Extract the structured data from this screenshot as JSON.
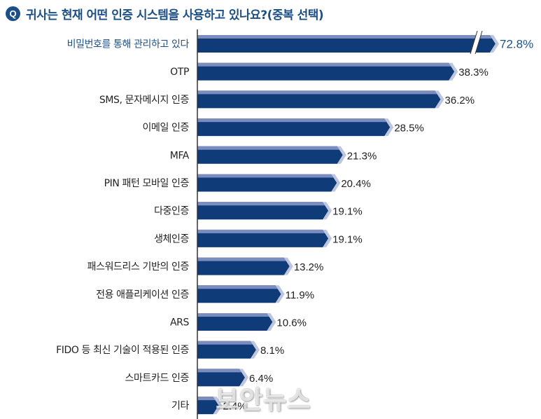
{
  "question_badge": "Q",
  "title": "귀사는 현재 어떤 인증 시스템을 사용하고 있나요?(중복 선택)",
  "watermark": "보안뉴스",
  "colors": {
    "bar_main": "#0f3b78",
    "bar_top": "#7b8cbf",
    "bar_end": "#bcc6e0",
    "highlight_text": "#1c4f86",
    "axis": "#333333"
  },
  "chart_data": {
    "type": "bar",
    "orientation": "horizontal",
    "title": "귀사는 현재 어떤 인증 시스템을 사용하고 있나요?(중복 선택)",
    "categories": [
      "비밀번호를 통해 관리하고 있다",
      "OTP",
      "SMS, 문자메시지 인증",
      "이메일 인증",
      "MFA",
      "PIN 패턴 모바일 인증",
      "다중인증",
      "생체인증",
      "패스워드리스 기반의 인증",
      "전용 애플리케이션 인증",
      "ARS",
      "FIDO 등 최신 기술이 적용된 인증",
      "스마트카드 인증",
      "기타"
    ],
    "values": [
      72.8,
      38.3,
      36.2,
      28.5,
      21.3,
      20.4,
      19.1,
      19.1,
      13.2,
      11.9,
      10.6,
      8.1,
      6.4,
      2.4
    ],
    "value_labels": [
      "72.8%",
      "38.3%",
      "36.2%",
      "28.5%",
      "21.3%",
      "20.4%",
      "19.1%",
      "19.1%",
      "13.2%",
      "11.9%",
      "10.6%",
      "8.1%",
      "6.4%",
      "2.4%"
    ],
    "unit": "%",
    "axis_break_on_first_bar": true,
    "highlight_index": 0
  }
}
